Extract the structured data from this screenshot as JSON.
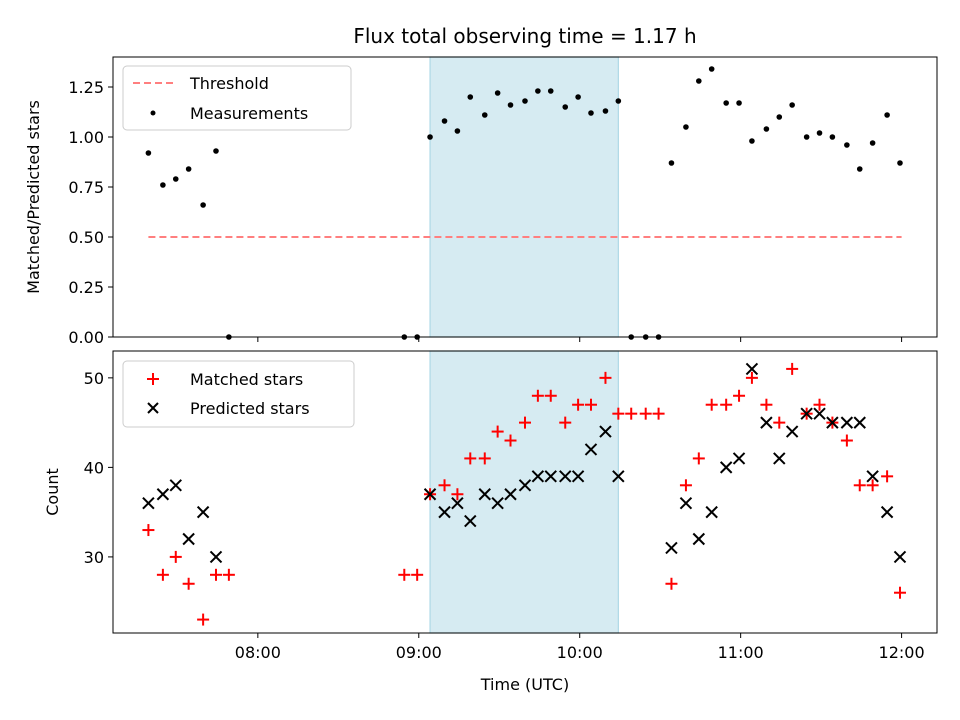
{
  "chart_data": [
    {
      "type": "scatter",
      "title": "Flux total observing time = 1.17 h",
      "xlabel": "",
      "ylabel": "Matched/Predicted stars",
      "xlim": [
        7.1,
        12.22
      ],
      "ylim": [
        0,
        1.4
      ],
      "yticks": [
        0.0,
        0.25,
        0.5,
        0.75,
        1.0,
        1.25
      ],
      "ytick_labels": [
        "0.00",
        "0.25",
        "0.50",
        "0.75",
        "1.00",
        "1.25"
      ],
      "shaded_interval": {
        "start": 9.07,
        "end": 10.24,
        "color": "#add8e6"
      },
      "legend": {
        "position": "top-left",
        "entries": [
          "Threshold",
          "Measurements"
        ]
      },
      "series": [
        {
          "name": "Threshold",
          "style": "dashed-line",
          "color": "#ff7f7f",
          "x": [
            7.32,
            12.0
          ],
          "y": [
            0.5,
            0.5
          ]
        },
        {
          "name": "Measurements",
          "style": "dot",
          "color": "#000000",
          "x": [
            7.32,
            7.41,
            7.49,
            7.57,
            7.66,
            7.74,
            7.82,
            8.91,
            8.99,
            9.07,
            9.16,
            9.24,
            9.32,
            9.41,
            9.49,
            9.57,
            9.66,
            9.74,
            9.82,
            9.91,
            9.99,
            10.07,
            10.16,
            10.24,
            10.32,
            10.41,
            10.49,
            10.57,
            10.66,
            10.74,
            10.82,
            10.91,
            10.99,
            11.07,
            11.16,
            11.24,
            11.32,
            11.41,
            11.49,
            11.57,
            11.66,
            11.74,
            11.82,
            11.91,
            11.99
          ],
          "y": [
            0.92,
            0.76,
            0.79,
            0.84,
            0.66,
            0.93,
            0.0,
            0.0,
            0.0,
            1.0,
            1.08,
            1.03,
            1.2,
            1.11,
            1.22,
            1.16,
            1.18,
            1.23,
            1.23,
            1.15,
            1.2,
            1.12,
            1.13,
            1.18,
            0.0,
            0.0,
            0.0,
            0.87,
            1.05,
            1.28,
            1.34,
            1.17,
            1.17,
            0.98,
            1.04,
            1.1,
            1.16,
            1.0,
            1.02,
            1.0,
            0.96,
            0.84,
            0.97,
            1.11,
            0.87
          ]
        }
      ]
    },
    {
      "type": "scatter",
      "title": "",
      "xlabel": "Time (UTC)",
      "ylabel": "Count",
      "xlim": [
        7.1,
        12.22
      ],
      "ylim": [
        21.5,
        53.0
      ],
      "yticks": [
        30,
        40,
        50
      ],
      "ytick_labels": [
        "30",
        "40",
        "50"
      ],
      "xticks": [
        8,
        9,
        10,
        11,
        12
      ],
      "xtick_labels": [
        "08:00",
        "09:00",
        "10:00",
        "11:00",
        "12:00"
      ],
      "shaded_interval": {
        "start": 9.07,
        "end": 10.24,
        "color": "#add8e6"
      },
      "legend": {
        "position": "top-left",
        "entries": [
          "Matched stars",
          "Predicted stars"
        ]
      },
      "series": [
        {
          "name": "Matched stars",
          "marker": "plus",
          "color": "#ff0000",
          "x": [
            7.32,
            7.41,
            7.49,
            7.57,
            7.66,
            7.74,
            7.82,
            8.91,
            8.99,
            9.07,
            9.16,
            9.24,
            9.32,
            9.41,
            9.49,
            9.57,
            9.66,
            9.74,
            9.82,
            9.91,
            9.99,
            10.07,
            10.16,
            10.24,
            10.32,
            10.41,
            10.49,
            10.57,
            10.66,
            10.74,
            10.82,
            10.91,
            10.99,
            11.07,
            11.16,
            11.24,
            11.32,
            11.41,
            11.49,
            11.57,
            11.66,
            11.74,
            11.82,
            11.91,
            11.99
          ],
          "y": [
            33,
            28,
            30,
            27,
            23,
            28,
            28,
            28,
            28,
            37,
            38,
            37,
            41,
            41,
            44,
            43,
            45,
            48,
            48,
            45,
            47,
            47,
            50,
            46,
            46,
            46,
            46,
            27,
            38,
            41,
            47,
            47,
            48,
            50,
            47,
            45,
            51,
            46,
            47,
            45,
            43,
            38,
            38,
            39,
            26
          ]
        },
        {
          "name": "Predicted stars",
          "marker": "x",
          "color": "#000000",
          "x": [
            7.32,
            7.41,
            7.49,
            7.57,
            7.66,
            7.74,
            9.07,
            9.16,
            9.24,
            9.32,
            9.41,
            9.49,
            9.57,
            9.66,
            9.74,
            9.82,
            9.91,
            9.99,
            10.07,
            10.16,
            10.24,
            10.57,
            10.66,
            10.74,
            10.82,
            10.91,
            10.99,
            11.07,
            11.16,
            11.24,
            11.32,
            11.41,
            11.49,
            11.57,
            11.66,
            11.74,
            11.82,
            11.91,
            11.99
          ],
          "y": [
            36,
            37,
            38,
            32,
            35,
            30,
            37,
            35,
            36,
            34,
            37,
            36,
            37,
            38,
            39,
            39,
            39,
            39,
            42,
            44,
            39,
            31,
            36,
            32,
            35,
            40,
            41,
            51,
            45,
            41,
            44,
            46,
            46,
            45,
            45,
            45,
            39,
            35,
            30
          ]
        }
      ]
    }
  ]
}
